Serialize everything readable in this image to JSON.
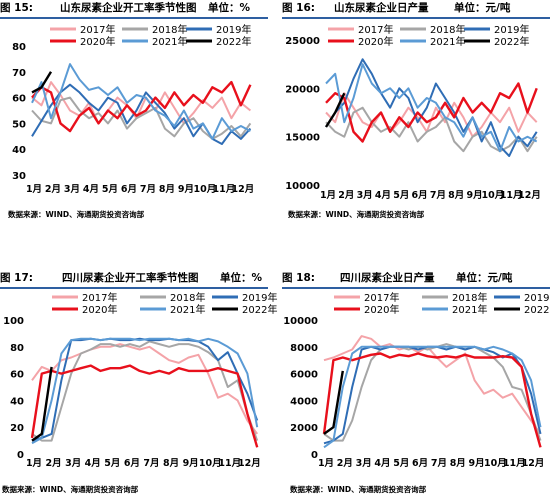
{
  "months": [
    "1月",
    "2月",
    "3月",
    "4月",
    "5月",
    "6月",
    "7月",
    "8月",
    "9月",
    "10月",
    "11月",
    "12月"
  ],
  "legend": [
    "2017年",
    "2018年",
    "2019年",
    "2020年",
    "2021年",
    "2022年"
  ],
  "colors": {
    "2017年": "#f4a3a8",
    "2018年": "#a6a6a6",
    "2019年": "#2f6db5",
    "2020年": "#e8101c",
    "2021年": "#5b9bd5",
    "2022年": "#000000",
    "bar": "#2e5fa1"
  },
  "charts": [
    {
      "figno": "图 15:",
      "title": "山东尿素企业开工率季节性图",
      "unit": "单位：%",
      "source": "数据来源：WIND、海通期货投资咨询部"
    },
    {
      "figno": "图 16:",
      "title": "山东尿素企业日产量",
      "unit": "单位：元/吨",
      "source": "数据来源：WIND、海通期货投资咨询部"
    },
    {
      "figno": "图 17:",
      "title": "四川尿素企业开工率季节性图",
      "unit": "单位：%",
      "source": "数据来源：WIND、海通期货投资咨询部"
    },
    {
      "figno": "图 18:",
      "title": "四川尿素企业日产量",
      "unit": "单位：元/吨",
      "source": "数据来源：WIND、海通期货投资咨询部"
    }
  ],
  "chart_data": [
    {
      "type": "line",
      "title": "山东尿素企业开工率季节性图",
      "ylim": [
        30,
        80
      ],
      "yticks": [
        "80",
        "70",
        "60",
        "50",
        "40",
        "30"
      ],
      "x": [
        1,
        1.5,
        2,
        2.5,
        3,
        3.5,
        4,
        4.5,
        5,
        5.5,
        6,
        6.5,
        7,
        7.5,
        8,
        8.5,
        9,
        9.5,
        10,
        10.5,
        11,
        11.5,
        12,
        12.5
      ],
      "series": [
        {
          "name": "2017年",
          "values": [
            60,
            57,
            66,
            61,
            55,
            53,
            58,
            50,
            55,
            60,
            57,
            52,
            60,
            55,
            62,
            56,
            50,
            54,
            59,
            56,
            60,
            52,
            58,
            55
          ]
        },
        {
          "name": "2018年",
          "values": [
            55,
            51,
            50,
            59,
            60,
            55,
            52,
            54,
            50,
            55,
            48,
            52,
            54,
            56,
            48,
            45,
            50,
            52,
            47,
            44,
            46,
            49,
            45,
            50
          ]
        },
        {
          "name": "2019年",
          "values": [
            45,
            51,
            57,
            62,
            65,
            62,
            58,
            55,
            60,
            58,
            50,
            55,
            62,
            58,
            54,
            48,
            52,
            45,
            50,
            44,
            42,
            47,
            44,
            48
          ]
        },
        {
          "name": "2020年",
          "values": [
            60,
            64,
            62,
            50,
            47,
            53,
            56,
            50,
            55,
            52,
            57,
            53,
            55,
            60,
            56,
            62,
            57,
            61,
            58,
            64,
            62,
            66,
            57,
            65
          ]
        },
        {
          "name": "2021年",
          "values": [
            58,
            66,
            52,
            62,
            73,
            67,
            63,
            64,
            61,
            64,
            58,
            61,
            60,
            55,
            53,
            49,
            55,
            48,
            50,
            44,
            52,
            47,
            49,
            47
          ]
        },
        {
          "name": "2022年",
          "values": [
            62,
            64,
            70,
            null,
            null,
            null,
            null,
            null,
            null,
            null,
            null,
            null,
            null,
            null,
            null,
            null,
            null,
            null,
            null,
            null,
            null,
            null,
            null,
            null
          ]
        }
      ]
    },
    {
      "type": "line",
      "title": "山东尿素企业日产量",
      "ylim": [
        10000,
        25000
      ],
      "yticks": [
        "25000",
        "20000",
        "15000",
        "10000"
      ],
      "x": [
        1,
        1.5,
        2,
        2.5,
        3,
        3.5,
        4,
        4.5,
        5,
        5.5,
        6,
        6.5,
        7,
        7.5,
        8,
        8.5,
        9,
        9.5,
        10,
        10.5,
        11,
        11.5,
        12,
        12.5
      ],
      "series": [
        {
          "name": "2017年",
          "values": [
            17500,
            16500,
            19500,
            18000,
            16500,
            16000,
            17500,
            15500,
            16500,
            18000,
            17000,
            15500,
            18000,
            16500,
            18500,
            17000,
            15000,
            16000,
            17500,
            16500,
            18000,
            15500,
            17500,
            16500
          ]
        },
        {
          "name": "2018年",
          "values": [
            16500,
            15500,
            15000,
            17500,
            18000,
            16500,
            15500,
            16000,
            15000,
            16500,
            14500,
            15500,
            16000,
            17000,
            14500,
            13500,
            15000,
            15500,
            14000,
            13500,
            14000,
            15000,
            13500,
            15000
          ]
        },
        {
          "name": "2019年",
          "values": [
            16000,
            17500,
            18500,
            21000,
            23000,
            21500,
            19500,
            18000,
            20000,
            19000,
            16500,
            18000,
            20500,
            19000,
            17500,
            15500,
            17000,
            14500,
            16500,
            14000,
            13000,
            15000,
            14000,
            15500
          ]
        },
        {
          "name": "2020年",
          "values": [
            18500,
            19500,
            19000,
            15500,
            14500,
            16500,
            17500,
            15500,
            17000,
            16000,
            17500,
            16500,
            17000,
            18500,
            17000,
            19000,
            17500,
            18500,
            17500,
            19500,
            19000,
            20500,
            17500,
            20000
          ]
        },
        {
          "name": "2021年",
          "values": [
            20500,
            21500,
            16500,
            19000,
            22500,
            20500,
            19500,
            20000,
            19000,
            20000,
            18000,
            19000,
            18500,
            17000,
            16500,
            15000,
            17000,
            15000,
            15500,
            13500,
            16000,
            14500,
            15000,
            14500
          ]
        },
        {
          "name": "2022年",
          "values": [
            16000,
            17500,
            19500,
            null,
            null,
            null,
            null,
            null,
            null,
            null,
            null,
            null,
            null,
            null,
            null,
            null,
            null,
            null,
            null,
            null,
            null,
            null,
            null,
            null
          ]
        }
      ]
    },
    {
      "type": "line",
      "title": "四川尿素企业开工率季节性图",
      "ylim": [
        0,
        100
      ],
      "yticks": [
        "100",
        "80",
        "60",
        "40",
        "20",
        "0"
      ],
      "x": [
        1,
        1.5,
        2,
        2.5,
        3,
        3.5,
        4,
        4.5,
        5,
        5.5,
        6,
        6.5,
        7,
        7.5,
        8,
        8.5,
        9,
        9.5,
        10,
        10.5,
        11,
        11.5,
        12,
        12.5
      ],
      "series": [
        {
          "name": "2017年",
          "values": [
            55,
            65,
            62,
            70,
            72,
            75,
            78,
            80,
            80,
            82,
            80,
            78,
            80,
            75,
            70,
            68,
            72,
            74,
            60,
            42,
            45,
            40,
            25,
            15
          ]
        },
        {
          "name": "2018年",
          "values": [
            15,
            10,
            10,
            35,
            60,
            75,
            78,
            82,
            82,
            80,
            82,
            80,
            84,
            82,
            80,
            82,
            82,
            80,
            76,
            70,
            50,
            55,
            30,
            10
          ]
        },
        {
          "name": "2019年",
          "values": [
            10,
            12,
            15,
            55,
            85,
            85,
            86,
            85,
            86,
            85,
            85,
            86,
            85,
            85,
            86,
            85,
            85,
            84,
            80,
            70,
            76,
            60,
            45,
            25
          ]
        },
        {
          "name": "2020年",
          "values": [
            12,
            60,
            62,
            60,
            62,
            64,
            66,
            62,
            64,
            64,
            66,
            62,
            60,
            62,
            60,
            64,
            62,
            62,
            62,
            64,
            62,
            60,
            30,
            5
          ]
        },
        {
          "name": "2021年",
          "values": [
            8,
            12,
            40,
            75,
            85,
            86,
            86,
            85,
            86,
            86,
            86,
            85,
            86,
            86,
            86,
            85,
            86,
            84,
            86,
            84,
            80,
            75,
            60,
            20
          ]
        },
        {
          "name": "2022年",
          "values": [
            10,
            15,
            65,
            null,
            null,
            null,
            null,
            null,
            null,
            null,
            null,
            null,
            null,
            null,
            null,
            null,
            null,
            null,
            null,
            null,
            null,
            null,
            null,
            null
          ]
        }
      ]
    },
    {
      "type": "line",
      "title": "四川尿素企业日产量",
      "ylim": [
        0,
        10000
      ],
      "yticks": [
        "10000",
        "8000",
        "6000",
        "4000",
        "2000",
        "0"
      ],
      "x": [
        1,
        1.5,
        2,
        2.5,
        3,
        3.5,
        4,
        4.5,
        5,
        5.5,
        6,
        6.5,
        7,
        7.5,
        8,
        8.5,
        9,
        9.5,
        10,
        10.5,
        11,
        11.5,
        12,
        12.5
      ],
      "series": [
        {
          "name": "2017年",
          "values": [
            7000,
            7200,
            7500,
            7800,
            8800,
            8600,
            8000,
            8200,
            7800,
            8000,
            7600,
            8000,
            7200,
            6500,
            7000,
            7500,
            5500,
            4500,
            4800,
            4200,
            4500,
            3500,
            2500,
            1500
          ]
        },
        {
          "name": "2018年",
          "values": [
            1500,
            1000,
            1000,
            2500,
            5000,
            7000,
            7800,
            8000,
            8000,
            7800,
            8000,
            7800,
            8000,
            8200,
            8000,
            7800,
            8000,
            7600,
            7200,
            6500,
            5000,
            4800,
            3000,
            1000
          ]
        },
        {
          "name": "2019年",
          "values": [
            800,
            1000,
            1500,
            5000,
            7800,
            8000,
            7800,
            8000,
            8000,
            8000,
            7800,
            8000,
            8000,
            7800,
            8000,
            7800,
            8000,
            7800,
            7600,
            7200,
            7500,
            6500,
            4500,
            1500
          ]
        },
        {
          "name": "2020年",
          "values": [
            1500,
            7000,
            7200,
            7000,
            7200,
            7400,
            7500,
            7200,
            7400,
            7300,
            7500,
            7300,
            7200,
            7300,
            7200,
            7400,
            7200,
            7200,
            7200,
            7300,
            7200,
            6500,
            3000,
            500
          ]
        },
        {
          "name": "2021年",
          "values": [
            500,
            1000,
            5000,
            7500,
            8000,
            8000,
            8000,
            8000,
            8000,
            8000,
            8000,
            8000,
            8000,
            8000,
            8000,
            8000,
            8000,
            7800,
            8000,
            7800,
            7500,
            7000,
            5500,
            2000
          ]
        },
        {
          "name": "2022年",
          "values": [
            1500,
            2000,
            6200,
            null,
            null,
            null,
            null,
            null,
            null,
            null,
            null,
            null,
            null,
            null,
            null,
            null,
            null,
            null,
            null,
            null,
            null,
            null,
            null,
            null
          ]
        }
      ]
    }
  ]
}
